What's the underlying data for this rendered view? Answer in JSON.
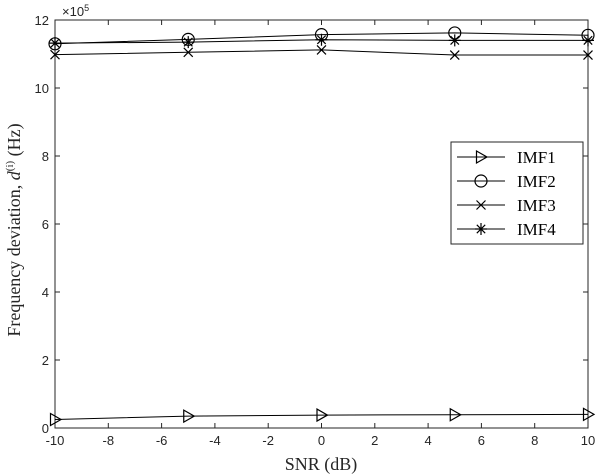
{
  "chart_data": {
    "type": "line",
    "x": [
      -10,
      -5,
      0,
      5,
      10
    ],
    "xlim": [
      -10,
      10
    ],
    "ylim": [
      0,
      12
    ],
    "multiplier_label": "×10",
    "multiplier_exponent": "5",
    "xlabel": "SNR (dB)",
    "ylabel_prefix": "Frequency deviation, ",
    "ylabel_symbol": "d",
    "ylabel_superscript": "(i)",
    "ylabel_suffix": " (Hz)",
    "xticks": [
      -10,
      -8,
      -6,
      -4,
      -2,
      0,
      2,
      4,
      6,
      8,
      10
    ],
    "yticks": [
      0,
      2,
      4,
      6,
      8,
      10,
      12
    ],
    "grid": false,
    "legend_position": "right",
    "series": [
      {
        "name": "IMF1",
        "marker": "triangle-right",
        "values": [
          0.25,
          0.35,
          0.38,
          0.39,
          0.4
        ]
      },
      {
        "name": "IMF2",
        "marker": "circle",
        "values": [
          11.3,
          11.43,
          11.57,
          11.62,
          11.55
        ]
      },
      {
        "name": "IMF3",
        "marker": "x",
        "values": [
          10.98,
          11.05,
          11.12,
          10.97,
          10.97
        ]
      },
      {
        "name": "IMF4",
        "marker": "asterisk",
        "values": [
          11.32,
          11.35,
          11.42,
          11.4,
          11.4
        ]
      }
    ]
  }
}
